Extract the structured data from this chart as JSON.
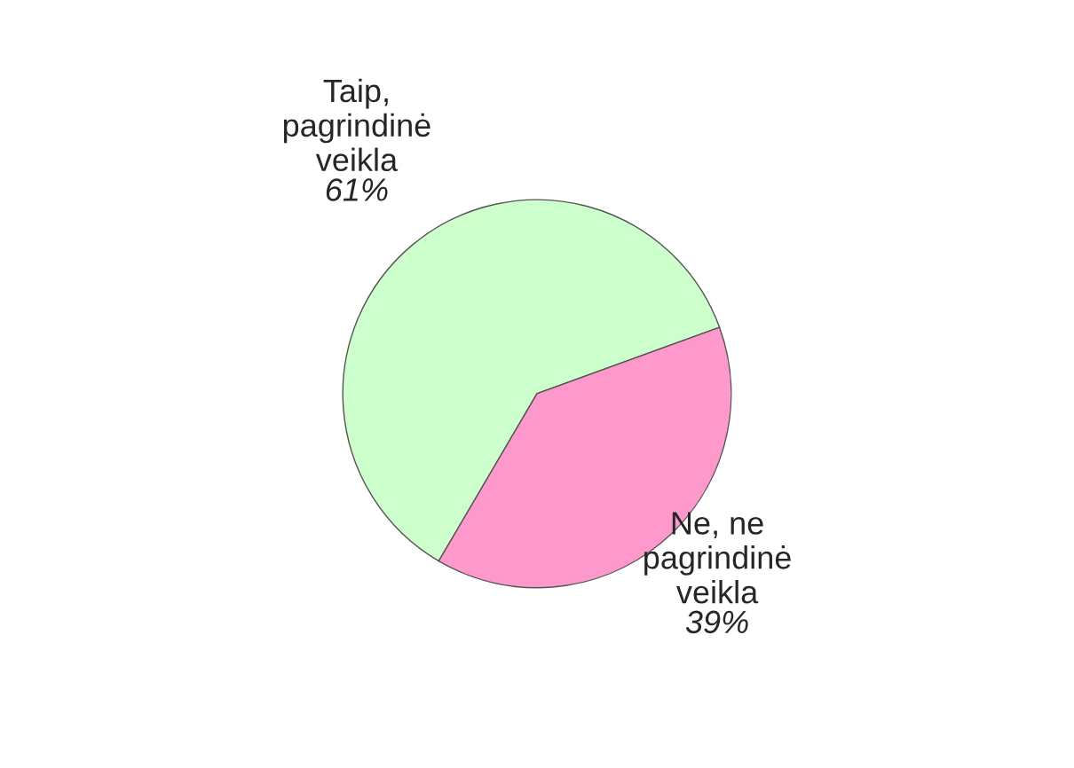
{
  "chart_data": {
    "type": "pie",
    "categories": [
      "Taip,\npagrindinė\nveikla",
      "Ne, ne\npagrindinė\nveikla"
    ],
    "values": [
      61,
      39
    ],
    "colors": [
      "#ccffcc",
      "#ff99cc"
    ],
    "value_labels": [
      "61%",
      "39%"
    ]
  }
}
